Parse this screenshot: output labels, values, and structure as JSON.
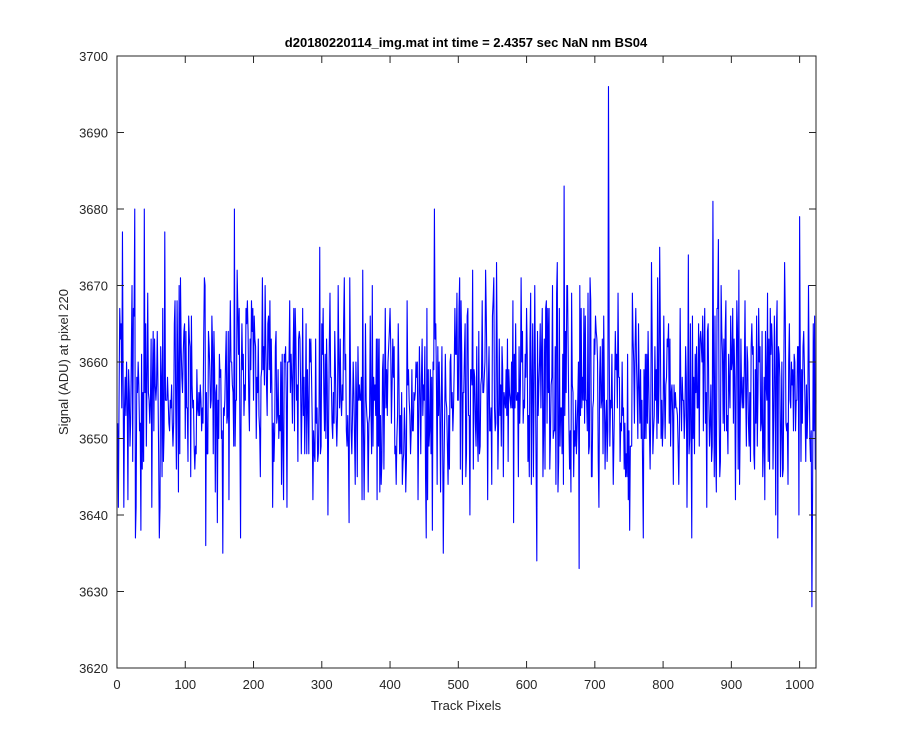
{
  "figure": {
    "background": "#ffffff"
  },
  "chart_data": {
    "type": "line",
    "title": "d20180220114_img.mat int time = 2.4357 sec  NaN nm BS04",
    "xlabel": "Track Pixels",
    "ylabel": "Signal (ADU) at pixel 220",
    "xlim": [
      0,
      1024
    ],
    "ylim": [
      3620,
      3700
    ],
    "xticks": [
      0,
      100,
      200,
      300,
      400,
      500,
      600,
      700,
      800,
      900,
      1000
    ],
    "yticks": [
      3620,
      3630,
      3640,
      3650,
      3660,
      3670,
      3680,
      3690,
      3700
    ],
    "grid": false,
    "legend": "none",
    "series": [
      {
        "color": "#0000ff",
        "n_points": 1024,
        "mean": 3656,
        "notable_points": [
          {
            "x": 1,
            "y": 3652
          },
          {
            "x": 8,
            "y": 3677
          },
          {
            "x": 10,
            "y": 3641
          },
          {
            "x": 26,
            "y": 3680
          },
          {
            "x": 40,
            "y": 3680
          },
          {
            "x": 70,
            "y": 3677
          },
          {
            "x": 130,
            "y": 3636
          },
          {
            "x": 155,
            "y": 3635
          },
          {
            "x": 172,
            "y": 3680
          },
          {
            "x": 465,
            "y": 3680
          },
          {
            "x": 478,
            "y": 3635
          },
          {
            "x": 615,
            "y": 3634
          },
          {
            "x": 655,
            "y": 3683
          },
          {
            "x": 677,
            "y": 3633
          },
          {
            "x": 720,
            "y": 3696
          },
          {
            "x": 873,
            "y": 3681
          },
          {
            "x": 1000,
            "y": 3679
          },
          {
            "x": 1018,
            "y": 3628
          },
          {
            "x": 1022,
            "y": 3666
          },
          {
            "x": 1024,
            "y": 3655
          }
        ]
      }
    ]
  }
}
